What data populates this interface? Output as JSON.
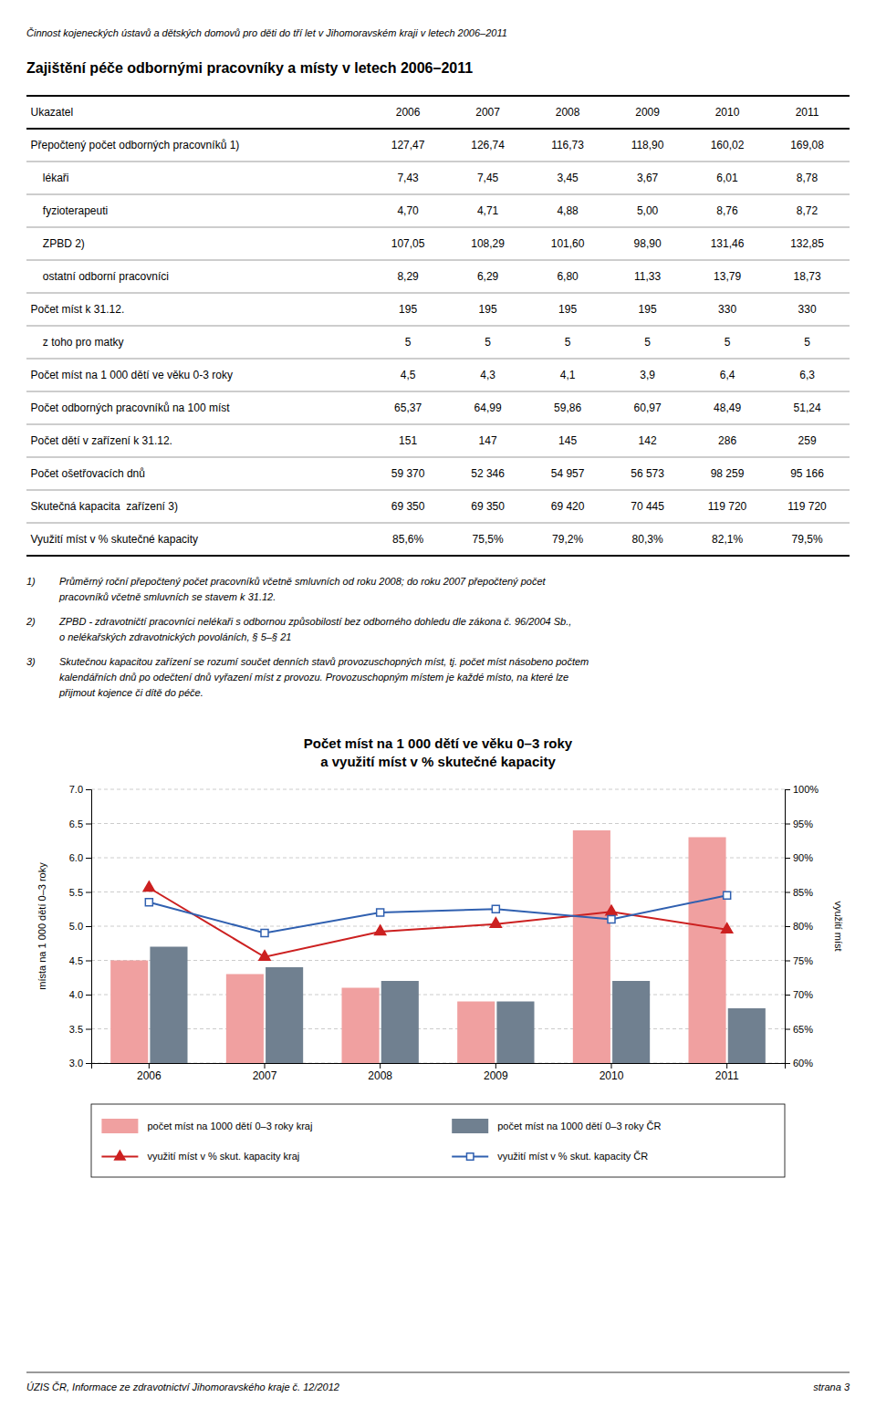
{
  "page_title": "Činnost kojeneckých ústavů a dětských domovů pro děti do tří let v Jihomoravském kraji v letech 2006–2011",
  "section_title": "Zajištění péče odbornými pracovníky a místy v letech 2006–2011",
  "table": {
    "headers": [
      "Ukazatel",
      "2006",
      "2007",
      "2008",
      "2009",
      "2010",
      "2011"
    ],
    "rows": [
      [
        "Přepočtený počet odborných pracovníků 1)",
        "127,47",
        "126,74",
        "116,73",
        "118,90",
        "160,02",
        "169,08"
      ],
      [
        "    lékaři",
        "7,43",
        "7,45",
        "3,45",
        "3,67",
        "6,01",
        "8,78"
      ],
      [
        "    fyzioterapeuti",
        "4,70",
        "4,71",
        "4,88",
        "5,00",
        "8,76",
        "8,72"
      ],
      [
        "    ZPBD 2)",
        "107,05",
        "108,29",
        "101,60",
        "98,90",
        "131,46",
        "132,85"
      ],
      [
        "    ostatní odborní pracovníci",
        "8,29",
        "6,29",
        "6,80",
        "11,33",
        "13,79",
        "18,73"
      ],
      [
        "Počet míst k 31.12.",
        "195",
        "195",
        "195",
        "195",
        "330",
        "330"
      ],
      [
        "    z toho pro matky",
        "5",
        "5",
        "5",
        "5",
        "5",
        "5"
      ],
      [
        "Počet míst na 1 000 dětí ve věku 0-3 roky",
        "4,5",
        "4,3",
        "4,1",
        "3,9",
        "6,4",
        "6,3"
      ],
      [
        "Počet odborných pracovníků na 100 míst",
        "65,37",
        "64,99",
        "59,86",
        "60,97",
        "48,49",
        "51,24"
      ],
      [
        "Počet dětí v zařízení k 31.12.",
        "151",
        "147",
        "145",
        "142",
        "286",
        "259"
      ],
      [
        "Počet ošetřovacích dnů",
        "59 370",
        "52 346",
        "54 957",
        "56 573",
        "98 259",
        "95 166"
      ],
      [
        "Skutečná kapacita  zařízení 3)",
        "69 350",
        "69 350",
        "69 420",
        "70 445",
        "119 720",
        "119 720"
      ],
      [
        "Využití míst v % skutečné kapacity",
        "85,6%",
        "75,5%",
        "79,2%",
        "80,3%",
        "82,1%",
        "79,5%"
      ]
    ]
  },
  "footnotes": [
    {
      "mark": "1)",
      "lines": [
        "Průměrný roční přepočtený počet pracovníků včetně smluvních od roku 2008; do roku 2007 přepočtený počet",
        "pracovníků včetně smluvních se stavem k 31.12."
      ]
    },
    {
      "mark": "2)",
      "lines": [
        "ZPBD - zdravotničtí pracovníci nelékaři s odbornou způsobilostí bez odborného dohledu dle zákona č. 96/2004 Sb.,",
        "o nelékařských zdravotnických povoláních, § 5–§ 21"
      ]
    },
    {
      "mark": "3)",
      "lines": [
        "Skutečnou kapacitou zařízení se rozumí součet denních stavů provozuschopných míst, tj. počet míst násobeno počtem",
        "kalendářních dnů po odečtení dnů vyřazení míst z provozu. Provozuschopným místem je každé místo, na které lze",
        "přijmout kojence či dítě do péče."
      ]
    }
  ],
  "footer": {
    "left": "ÚZIS ČR, Informace ze zdravotnictví Jihomoravského kraje č. 12/2012",
    "right": "strana 3"
  },
  "chart_data": {
    "type": "bar",
    "title": "Počet míst na 1 000 dětí ve věku 0–3 roky",
    "subtitle": "a využití míst v % skutečné kapacity",
    "categories": [
      "2006",
      "2007",
      "2008",
      "2009",
      "2010",
      "2011"
    ],
    "series": [
      {
        "name": "počet míst na 1000 dětí 0–3 roky kraj",
        "type": "bar",
        "color": "#f0a0a0",
        "values": [
          4.5,
          4.3,
          4.1,
          3.9,
          6.4,
          6.3
        ]
      },
      {
        "name": "počet míst na 1000 dětí 0–3 roky ČR",
        "type": "bar",
        "color": "#708090",
        "values": [
          4.7,
          4.4,
          4.2,
          3.9,
          4.2,
          3.8
        ]
      },
      {
        "name": "využití míst v % skut. kapacity kraj",
        "type": "line",
        "axis": "y2",
        "color": "#cc2020",
        "marker": "triangle",
        "values": [
          85.6,
          75.5,
          79.2,
          80.3,
          82.1,
          79.5
        ]
      },
      {
        "name": "využití míst v % skut. kapacity ČR",
        "type": "line",
        "axis": "y2",
        "color": "#3060b0",
        "marker": "open-square",
        "values": [
          83.5,
          79.0,
          82.0,
          82.5,
          81.0,
          84.5
        ]
      }
    ],
    "y_label": "místa na 1 000 dětí 0–3 roky",
    "y2_label": "využití míst",
    "ylim": [
      3.0,
      7.0
    ],
    "yticks": [
      {
        "value": 3,
        "label": "3.0"
      },
      3.5,
      {
        "value": 4,
        "label": "4.0"
      },
      4.5,
      {
        "value": 5,
        "label": "5.0"
      },
      5.5,
      {
        "value": 6,
        "label": "6.0"
      },
      6.5,
      {
        "value": 7,
        "label": "7.0"
      }
    ],
    "y2lim": [
      60,
      100
    ],
    "y2ticks": [
      {
        "value": 60,
        "label": "60%"
      },
      {
        "value": 65,
        "label": "65%"
      },
      {
        "value": 70,
        "label": "70%"
      },
      {
        "value": 75,
        "label": "75%"
      },
      {
        "value": 80,
        "label": "80%"
      },
      {
        "value": 85,
        "label": "85%"
      },
      {
        "value": 90,
        "label": "90%"
      },
      {
        "value": 95,
        "label": "95%"
      },
      {
        "value": 100,
        "label": "100%"
      }
    ],
    "grid": true,
    "legend": "bottom"
  }
}
